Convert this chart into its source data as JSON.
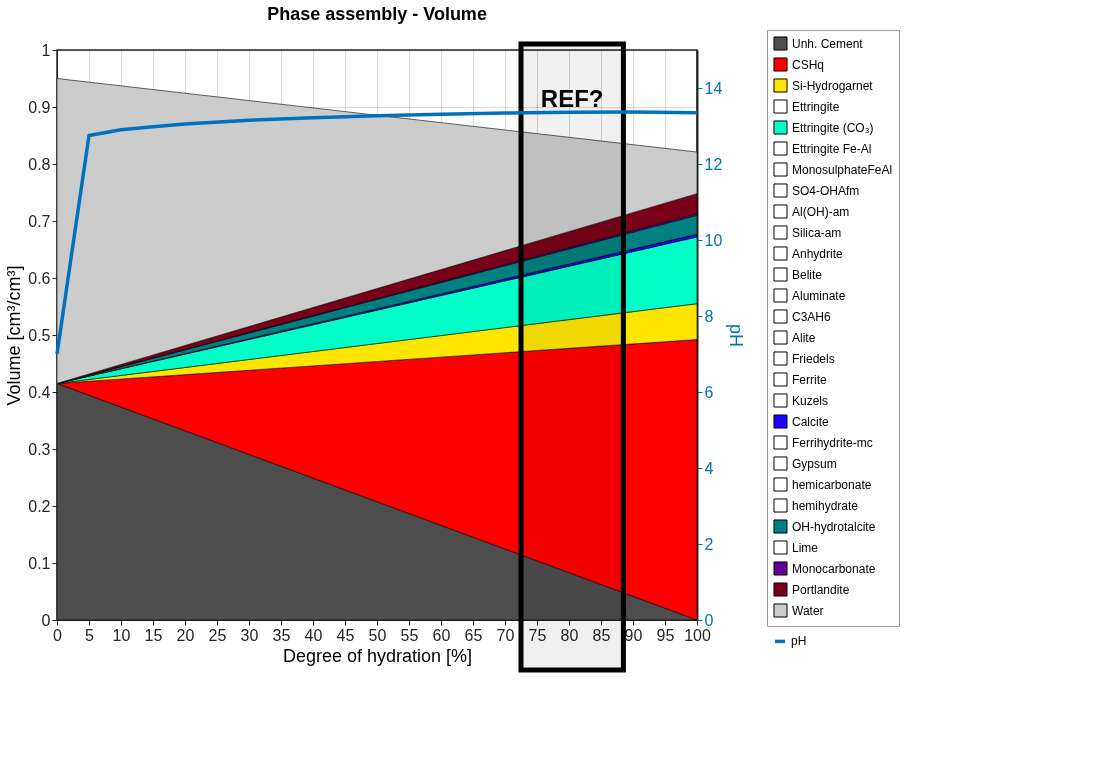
{
  "chart_data": {
    "type": "area",
    "title": "Phase assembly - Volume",
    "xlabel": "Degree of hydration [%]",
    "ylabel": "Volume [cm³/cm³]",
    "y2label": "pH",
    "x": [
      0,
      100
    ],
    "stacked": true,
    "xlim": [
      0,
      100
    ],
    "xticks": [
      0,
      5,
      10,
      15,
      20,
      25,
      30,
      35,
      40,
      45,
      50,
      55,
      60,
      65,
      70,
      75,
      80,
      85,
      90,
      95,
      100
    ],
    "ylim": [
      0,
      1
    ],
    "yticks": [
      0,
      0.1,
      0.2,
      0.3,
      0.4,
      0.5,
      0.6,
      0.7,
      0.8,
      0.9,
      1
    ],
    "y2lim": [
      0,
      15
    ],
    "y2ticks": [
      0,
      2,
      4,
      6,
      8,
      10,
      12,
      14
    ],
    "grid": true,
    "legend": "right",
    "series": [
      {
        "name": "Unh. Cement",
        "color": "#4d4d4d",
        "values": [
          0.415,
          0
        ]
      },
      {
        "name": "CSHq",
        "color": "#ff0000",
        "values": [
          0,
          0.492
        ]
      },
      {
        "name": "Si-Hydrogarnet",
        "color": "#ffe600",
        "values": [
          0,
          0.063
        ]
      },
      {
        "name": "Ettringite",
        "color": "#ffffff",
        "values": [
          null,
          null
        ]
      },
      {
        "name": "Ettringite (CO₃)",
        "color": "#00ffc8",
        "values": [
          0,
          0.117
        ]
      },
      {
        "name": "Ettringite Fe-Al",
        "color": "#ffffff",
        "values": [
          null,
          null
        ]
      },
      {
        "name": "MonosulphateFeAl",
        "color": "#ffffff",
        "values": [
          null,
          null
        ]
      },
      {
        "name": "SO4-OHAfm",
        "color": "#ffffff",
        "values": [
          null,
          null
        ]
      },
      {
        "name": "Al(OH)-am",
        "color": "#ffffff",
        "values": [
          null,
          null
        ]
      },
      {
        "name": "Silica-am",
        "color": "#ffffff",
        "values": [
          null,
          null
        ]
      },
      {
        "name": "Anhydrite",
        "color": "#ffffff",
        "values": [
          null,
          null
        ]
      },
      {
        "name": "Belite",
        "color": "#ffffff",
        "values": [
          null,
          null
        ]
      },
      {
        "name": "Aluminate",
        "color": "#ffffff",
        "values": [
          null,
          null
        ]
      },
      {
        "name": "C3AH6",
        "color": "#ffffff",
        "values": [
          null,
          null
        ]
      },
      {
        "name": "Alite",
        "color": "#ffffff",
        "values": [
          null,
          null
        ]
      },
      {
        "name": "Friedels",
        "color": "#ffffff",
        "values": [
          null,
          null
        ]
      },
      {
        "name": "Ferrite",
        "color": "#ffffff",
        "values": [
          null,
          null
        ]
      },
      {
        "name": "Kuzels",
        "color": "#ffffff",
        "values": [
          null,
          null
        ]
      },
      {
        "name": "Calcite",
        "color": "#1a00ff",
        "values": [
          0,
          0.005
        ]
      },
      {
        "name": "Ferrihydrite-mc",
        "color": "#ffffff",
        "values": [
          null,
          null
        ]
      },
      {
        "name": "Gypsum",
        "color": "#ffffff",
        "values": [
          null,
          null
        ]
      },
      {
        "name": "hemicarbonate",
        "color": "#ffffff",
        "values": [
          null,
          null
        ]
      },
      {
        "name": "hemihydrate",
        "color": "#ffffff",
        "values": [
          null,
          null
        ]
      },
      {
        "name": "OH-hydrotalcite",
        "color": "#008080",
        "values": [
          0,
          0.033
        ]
      },
      {
        "name": "Lime",
        "color": "#ffffff",
        "values": [
          null,
          null
        ]
      },
      {
        "name": "Monocarbonate",
        "color": "#660099",
        "values": [
          0,
          0.003
        ]
      },
      {
        "name": "Portlandite",
        "color": "#7a0019",
        "values": [
          0,
          0.035
        ]
      },
      {
        "name": "Water",
        "color": "#cccccc",
        "values": [
          0.535,
          0.073
        ]
      },
      {
        "name": "pH",
        "type": "line",
        "axis": "y2",
        "color": "#0072bd",
        "x": [
          0,
          5,
          10,
          15,
          20,
          30,
          40,
          50,
          60,
          70,
          80,
          90,
          100
        ],
        "values": [
          7.0,
          12.75,
          12.9,
          12.98,
          13.05,
          13.15,
          13.22,
          13.27,
          13.31,
          13.34,
          13.36,
          13.37,
          13.35
        ]
      }
    ],
    "bands": [
      {
        "axis": "x",
        "from": 72.5,
        "to": 88.5,
        "label": "REF?",
        "color": "#000000"
      }
    ]
  }
}
